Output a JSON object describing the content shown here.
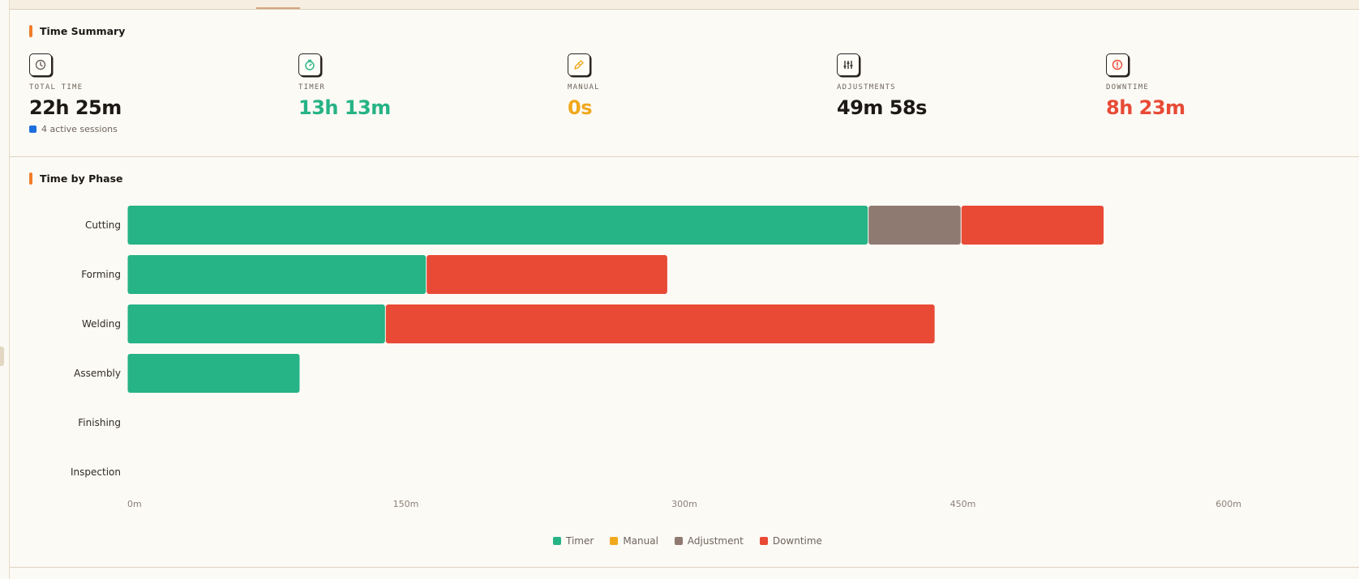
{
  "summary": {
    "title": "Time Summary",
    "stats": [
      {
        "key": "total",
        "label": "TOTAL TIME",
        "value": "22h 25m",
        "color": "#1c1917",
        "icon": "clock-icon"
      },
      {
        "key": "timer",
        "label": "TIMER",
        "value": "13h 13m",
        "color": "#26b385",
        "icon": "stopwatch-icon"
      },
      {
        "key": "manual",
        "label": "MANUAL",
        "value": "0s",
        "color": "#f0a81c",
        "icon": "pen-icon"
      },
      {
        "key": "adjustments",
        "label": "ADJUSTMENTS",
        "value": "49m 58s",
        "color": "#1c1917",
        "icon": "sliders-icon"
      },
      {
        "key": "downtime",
        "label": "DOWNTIME",
        "value": "8h 23m",
        "color": "#e84a35",
        "icon": "alert-icon"
      }
    ],
    "sessions": "4 active sessions"
  },
  "phase_chart_title": "Time by Phase",
  "colors": {
    "timer": "#26b385",
    "manual": "#f0a81c",
    "adjustment": "#8f7a71",
    "downtime": "#e84a35"
  },
  "chart_data": {
    "type": "bar",
    "orientation": "horizontal",
    "stacked": true,
    "categories": [
      "Cutting",
      "Forming",
      "Welding",
      "Assembly",
      "Finishing",
      "Inspection"
    ],
    "series": [
      {
        "name": "Timer",
        "color": "#26b385",
        "values": [
          399,
          161,
          139,
          93,
          0,
          0
        ]
      },
      {
        "name": "Manual",
        "color": "#f0a81c",
        "values": [
          0,
          0,
          0,
          0,
          0,
          0
        ]
      },
      {
        "name": "Adjustment",
        "color": "#8f7a71",
        "values": [
          50,
          0,
          0,
          0,
          0,
          0
        ]
      },
      {
        "name": "Downtime",
        "color": "#e84a35",
        "values": [
          77,
          130,
          296,
          0,
          0,
          0
        ]
      }
    ],
    "x_ticks": [
      "0m",
      "150m",
      "300m",
      "450m",
      "600m"
    ],
    "xlim": [
      0,
      600
    ],
    "legend_position": "bottom"
  }
}
